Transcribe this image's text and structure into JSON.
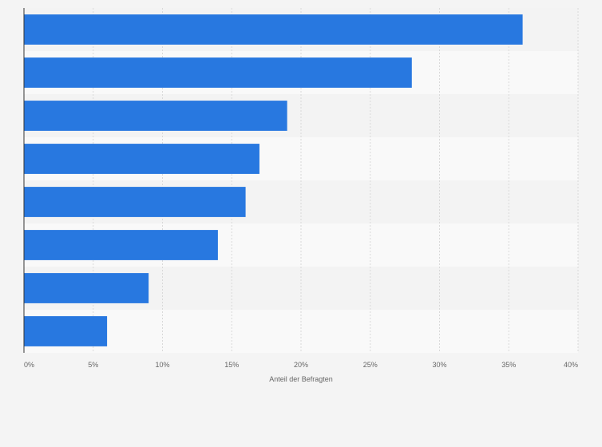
{
  "chart_data": {
    "type": "bar",
    "orientation": "horizontal",
    "categories": [
      "",
      "",
      "",
      "",
      "",
      "",
      "",
      ""
    ],
    "values": [
      36,
      28,
      19,
      17,
      16,
      14,
      9,
      6
    ],
    "xlabel": "Anteil der Befragten",
    "ylabel": "",
    "xlim": [
      0,
      40
    ],
    "ticks": [
      0,
      5,
      10,
      15,
      20,
      25,
      30,
      35,
      40
    ],
    "tick_labels": [
      "0%",
      "5%",
      "10%",
      "15%",
      "20%",
      "25%",
      "30%",
      "35%",
      "40%"
    ],
    "grid": true,
    "legend": "none",
    "bar_color": "#2878e0",
    "band_color_a": "#f3f3f3",
    "band_color_b": "#f9f9f9",
    "grid_color": "#d9d9d9",
    "axis_color": "#333333"
  }
}
